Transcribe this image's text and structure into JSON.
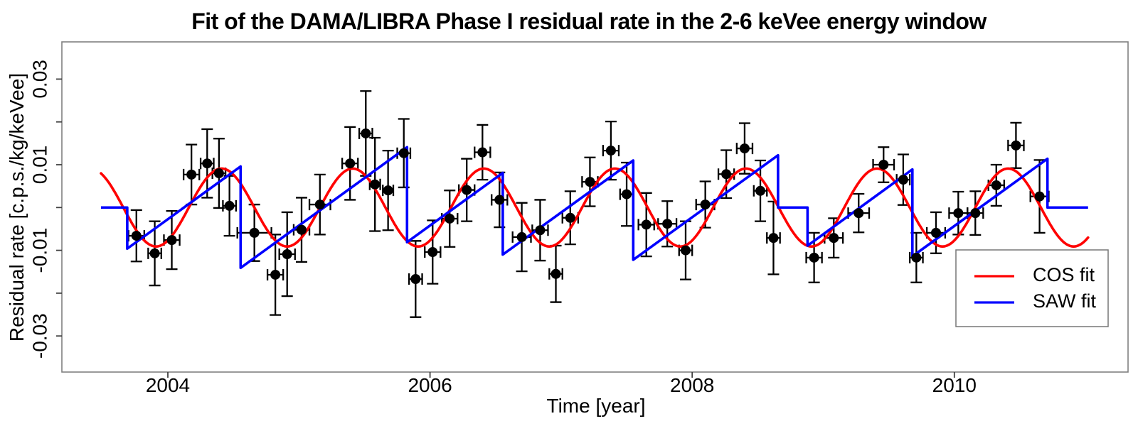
{
  "chart_data": {
    "type": "scatter",
    "title": "Fit of the DAMA/LIBRA Phase I residual rate in the 2-6 keVee energy window",
    "xlabel": "Time [year]",
    "ylabel": "Residual rate [c.p.s./kg/keVee]",
    "xlim": [
      2003.19,
      2011.33
    ],
    "ylim": [
      -0.0384,
      0.0387
    ],
    "x_ticks": [
      2004,
      2006,
      2008,
      2010
    ],
    "y_ticks_all": [
      0.03,
      0.02,
      0.01,
      0,
      -0.01,
      -0.02,
      -0.03
    ],
    "y_ticks_labeled": [
      0.03,
      0.01,
      -0.01,
      -0.03
    ],
    "grid": false,
    "point_color": "#000000",
    "frame_color": "#808080",
    "tick_color": "#404040",
    "points_columns": [
      "time_year",
      "residual_rate",
      "rate_error",
      "time_error"
    ],
    "points": [
      [
        2003.76,
        -0.0066,
        0.006,
        0.06
      ],
      [
        2003.9,
        -0.0107,
        0.0075,
        0.05
      ],
      [
        2004.03,
        -0.0076,
        0.0068,
        0.06
      ],
      [
        2004.18,
        0.0077,
        0.007,
        0.06
      ],
      [
        2004.3,
        0.0103,
        0.008,
        0.05
      ],
      [
        2004.39,
        0.008,
        0.0081,
        0.05
      ],
      [
        2004.47,
        0.0004,
        0.007,
        0.05
      ],
      [
        2004.66,
        -0.0059,
        0.0066,
        0.13
      ],
      [
        2004.82,
        -0.0157,
        0.0094,
        0.06
      ],
      [
        2004.91,
        -0.0109,
        0.0098,
        0.06
      ],
      [
        2005.02,
        -0.0052,
        0.0075,
        0.06
      ],
      [
        2005.16,
        0.0007,
        0.007,
        0.08
      ],
      [
        2005.39,
        0.0103,
        0.0085,
        0.06
      ],
      [
        2005.51,
        0.0173,
        0.0099,
        0.05
      ],
      [
        2005.58,
        0.0054,
        0.0109,
        0.04
      ],
      [
        2005.68,
        0.004,
        0.0093,
        0.04
      ],
      [
        2005.8,
        0.0127,
        0.008,
        0.05
      ],
      [
        2005.89,
        -0.0167,
        0.0089,
        0.05
      ],
      [
        2006.02,
        -0.0104,
        0.0074,
        0.06
      ],
      [
        2006.15,
        -0.0026,
        0.0066,
        0.06
      ],
      [
        2006.28,
        0.0041,
        0.0073,
        0.06
      ],
      [
        2006.4,
        0.0129,
        0.0064,
        0.06
      ],
      [
        2006.53,
        0.0018,
        0.0064,
        0.06
      ],
      [
        2006.7,
        -0.0069,
        0.008,
        0.07
      ],
      [
        2006.84,
        -0.0053,
        0.0071,
        0.06
      ],
      [
        2006.96,
        -0.0155,
        0.0066,
        0.05
      ],
      [
        2007.07,
        -0.0024,
        0.0062,
        0.06
      ],
      [
        2007.22,
        0.006,
        0.0057,
        0.06
      ],
      [
        2007.38,
        0.0133,
        0.0068,
        0.06
      ],
      [
        2007.5,
        0.0031,
        0.0074,
        0.05
      ],
      [
        2007.65,
        -0.004,
        0.0074,
        0.06
      ],
      [
        2007.81,
        -0.0038,
        0.0053,
        0.07
      ],
      [
        2007.95,
        -0.01,
        0.0068,
        0.05
      ],
      [
        2008.1,
        0.0007,
        0.0054,
        0.07
      ],
      [
        2008.26,
        0.0078,
        0.0056,
        0.06
      ],
      [
        2008.4,
        0.0138,
        0.0059,
        0.06
      ],
      [
        2008.52,
        0.0039,
        0.0071,
        0.05
      ],
      [
        2008.62,
        -0.0071,
        0.0085,
        0.05
      ],
      [
        2008.93,
        -0.0117,
        0.0058,
        0.06
      ],
      [
        2009.08,
        -0.0071,
        0.0046,
        0.07
      ],
      [
        2009.27,
        -0.0013,
        0.0045,
        0.08
      ],
      [
        2009.46,
        0.01,
        0.0041,
        0.08
      ],
      [
        2009.61,
        0.0065,
        0.0059,
        0.05
      ],
      [
        2009.71,
        -0.0117,
        0.0058,
        0.05
      ],
      [
        2009.86,
        -0.0059,
        0.0048,
        0.07
      ],
      [
        2010.03,
        -0.0013,
        0.005,
        0.07
      ],
      [
        2010.16,
        -0.0013,
        0.0051,
        0.06
      ],
      [
        2010.32,
        0.0052,
        0.0048,
        0.06
      ],
      [
        2010.47,
        0.0145,
        0.0053,
        0.06
      ],
      [
        2010.65,
        0.0026,
        0.0085,
        0.07
      ]
    ],
    "cos_fit": {
      "label": "COS fit",
      "color": "#ff0000",
      "amplitude": 0.0091,
      "period_years": 1.0,
      "t_of_maximum": 2004.41,
      "t_start": 2003.49,
      "t_end": 2011.02
    },
    "saw_fit": {
      "label": "SAW fit",
      "color": "#0000ff",
      "vertices": [
        [
          2003.49,
          0.0
        ],
        [
          2003.69,
          0.0
        ],
        [
          2003.69,
          -0.0096
        ],
        [
          2004.555,
          0.0096
        ],
        [
          2004.555,
          -0.0141
        ],
        [
          2005.825,
          0.0141
        ],
        [
          2005.825,
          -0.0081
        ],
        [
          2006.555,
          0.0081
        ],
        [
          2006.555,
          -0.011
        ],
        [
          2007.55,
          0.011
        ],
        [
          2007.55,
          -0.0122
        ],
        [
          2008.655,
          0.0122
        ],
        [
          2008.655,
          0.0
        ],
        [
          2008.88,
          0.0
        ],
        [
          2008.88,
          -0.0089
        ],
        [
          2009.68,
          0.0089
        ],
        [
          2009.68,
          -0.0114
        ],
        [
          2010.71,
          0.0114
        ],
        [
          2010.71,
          0.0
        ],
        [
          2011.02,
          0.0
        ]
      ]
    },
    "legend": {
      "position": "bottom-right",
      "entries": [
        {
          "label": "COS fit",
          "color": "#ff0000"
        },
        {
          "label": "SAW fit",
          "color": "#0000ff"
        }
      ]
    }
  }
}
